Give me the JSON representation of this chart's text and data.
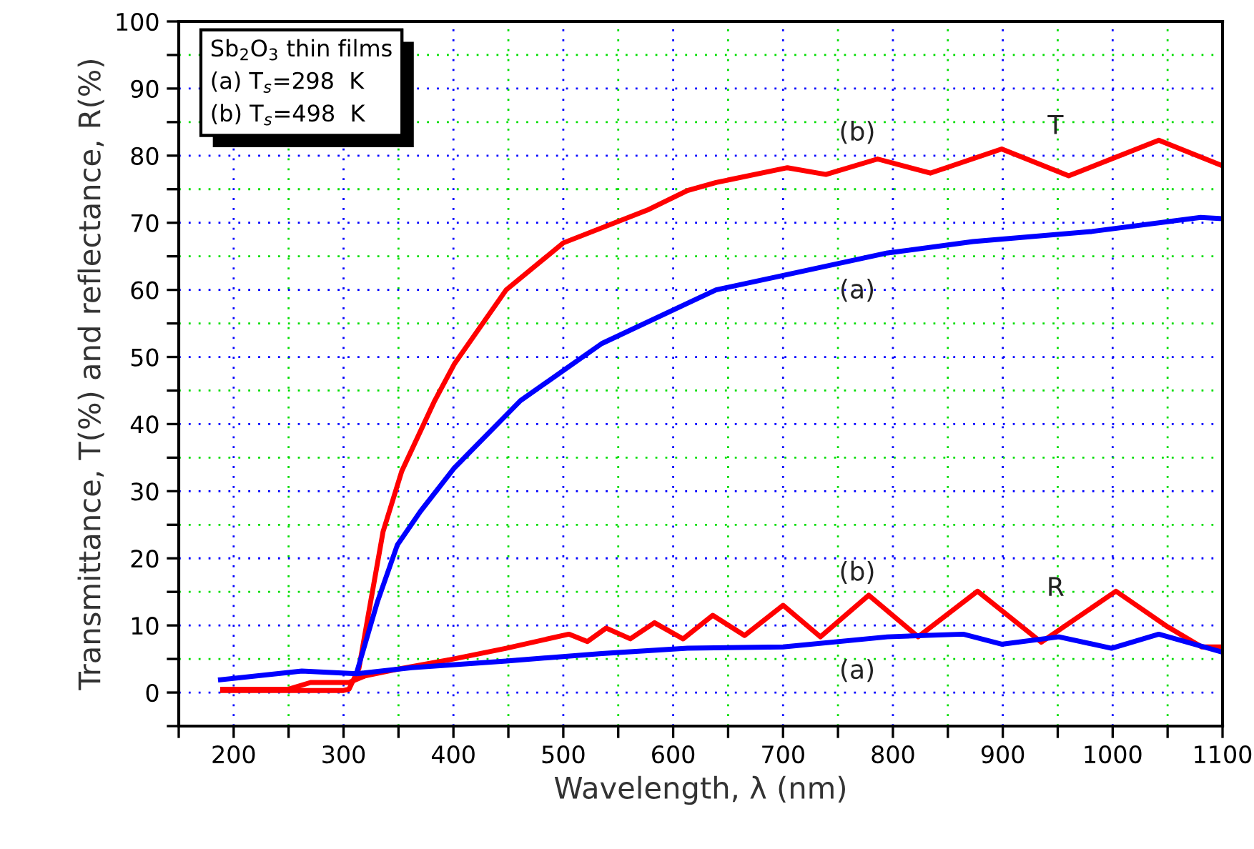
{
  "chart_data": {
    "type": "line",
    "xlabel": "Wavelength, λ (nm)",
    "ylabel": "Transmittance, T(%) and reflectance, R(%)",
    "xlim": [
      150,
      1100
    ],
    "ylim": [
      -5,
      100
    ],
    "xticks": [
      {
        "value": 150,
        "label": null
      },
      200,
      {
        "value": 250,
        "label": null
      },
      300,
      {
        "value": 350,
        "label": null
      },
      400,
      {
        "value": 450,
        "label": null
      },
      500,
      {
        "value": 550,
        "label": null
      },
      600,
      {
        "value": 650,
        "label": null
      },
      700,
      {
        "value": 750,
        "label": null
      },
      800,
      {
        "value": 850,
        "label": null
      },
      900,
      {
        "value": 950,
        "label": null
      },
      1000,
      {
        "value": 1050,
        "label": null
      },
      1100
    ],
    "yticks": [
      {
        "value": -5,
        "label": null
      },
      0,
      {
        "value": 5,
        "label": null
      },
      10,
      {
        "value": 15,
        "label": null
      },
      20,
      {
        "value": 25,
        "label": null
      },
      30,
      {
        "value": 35,
        "label": null
      },
      40,
      {
        "value": 45,
        "label": null
      },
      50,
      {
        "value": 55,
        "label": null
      },
      60,
      {
        "value": 65,
        "label": null
      },
      70,
      {
        "value": 75,
        "label": null
      },
      80,
      {
        "value": 85,
        "label": null
      },
      90,
      {
        "value": 95,
        "label": null
      },
      100
    ],
    "grid": true,
    "marker": "none",
    "line_style": "solid",
    "legend": false,
    "series": [
      {
        "name": "(b)",
        "color": "#ff0000",
        "x": [
          190,
          250,
          300,
          305,
          314,
          323,
          336,
          353,
          383,
          401,
          448,
          500,
          578,
          613,
          639,
          704,
          739,
          786,
          834,
          899,
          960,
          1042,
          1100
        ],
        "values": [
          0.3,
          0.3,
          0.3,
          0.5,
          3.6,
          12,
          24,
          33,
          43.5,
          49,
          60,
          67,
          72,
          74.8,
          76,
          78.2,
          77.2,
          79.5,
          77.4,
          81,
          77,
          82.3,
          78.5
        ]
      },
      {
        "name": "(a)",
        "color": "#0000ff",
        "x": [
          312,
          331,
          349,
          370,
          401,
          461,
          535,
          613,
          639,
          704,
          795,
          873,
          981,
          1080,
          1100
        ],
        "values": [
          3,
          13.6,
          22,
          27,
          33.5,
          43.5,
          52,
          58,
          60,
          62.3,
          65.5,
          67.2,
          68.7,
          70.8,
          70.6
        ]
      },
      {
        "name": "(b)",
        "color": "#ff0000",
        "x": [
          190,
          250,
          270,
          305,
          320,
          350,
          400,
          448,
          505,
          522,
          539,
          561,
          583,
          609,
          636,
          665,
          700,
          734,
          778,
          823,
          877,
          935,
          1003,
          1050,
          1081,
          1100
        ],
        "values": [
          0.5,
          0.5,
          1.5,
          1.5,
          2.5,
          3.5,
          5,
          6.6,
          8.7,
          7.6,
          9.6,
          8,
          10.4,
          8,
          11.5,
          8.5,
          13,
          8.3,
          14.5,
          8.3,
          15.1,
          7.5,
          15.1,
          9.8,
          6.8,
          6.8
        ]
      },
      {
        "name": "(a)",
        "color": "#0000ff",
        "x": [
          188,
          262,
          312,
          362,
          448,
          535,
          613,
          700,
          795,
          864,
          899,
          951,
          999,
          1042,
          1100
        ],
        "values": [
          1.9,
          3.2,
          2.8,
          3.7,
          4.7,
          5.8,
          6.6,
          6.8,
          8.3,
          8.7,
          7.2,
          8.3,
          6.6,
          8.7,
          6
        ]
      }
    ],
    "annotations": [
      "T",
      "R",
      "Sb$_{2}$O$_{3}$ thin films",
      "(a) T$_{s}$=298  K",
      "(b) T$_{s}$=498  K"
    ]
  }
}
